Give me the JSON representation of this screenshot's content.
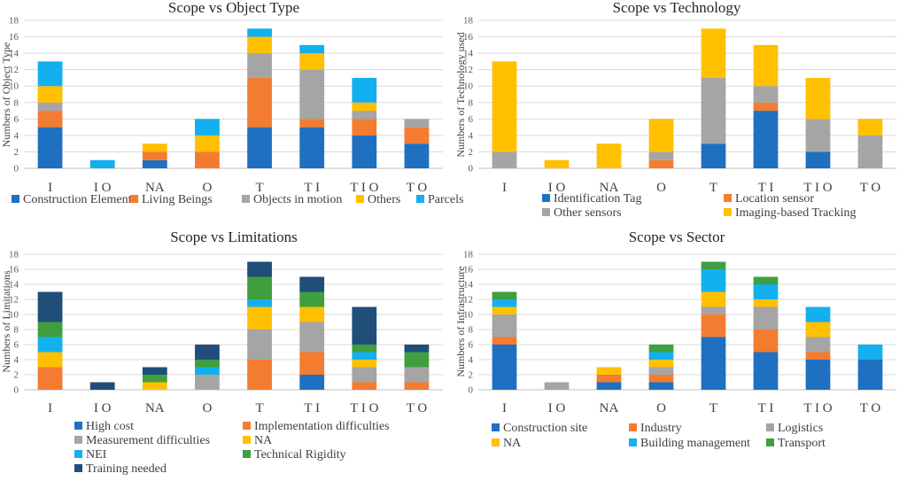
{
  "figure_name": "scope-charts",
  "colors": {
    "blue": "#1f70c1",
    "orange": "#f47c30",
    "gray": "#a5a5a5",
    "yellow": "#ffc000",
    "cyan": "#13b0ef",
    "green": "#3f9f3f",
    "navy": "#1f4e79"
  },
  "chart_data": [
    {
      "type": "bar",
      "stacked": true,
      "title": "Scope vs Object Type",
      "xlabel": "",
      "ylabel": "Numbers of Object Type",
      "ylim": [
        0,
        18
      ],
      "yticks": [
        0,
        2,
        4,
        6,
        8,
        10,
        12,
        14,
        16,
        18
      ],
      "grid": true,
      "legend_position": "bottom",
      "categories": [
        "I",
        "I O",
        "NA",
        "O",
        "T",
        "T I",
        "T I O",
        "T O"
      ],
      "series": [
        {
          "name": "Construction Elements",
          "color": "#1f70c1",
          "values": [
            5,
            0,
            1,
            0,
            5,
            5,
            4,
            3
          ]
        },
        {
          "name": "Living Beings",
          "color": "#f47c30",
          "values": [
            2,
            0,
            1,
            2,
            6,
            1,
            2,
            2
          ]
        },
        {
          "name": "Objects in motion",
          "color": "#a5a5a5",
          "values": [
            1,
            0,
            0,
            0,
            3,
            6,
            1,
            1
          ]
        },
        {
          "name": "Others",
          "color": "#ffc000",
          "values": [
            2,
            0,
            1,
            2,
            2,
            2,
            1,
            0
          ]
        },
        {
          "name": "Parcels",
          "color": "#13b0ef",
          "values": [
            3,
            1,
            0,
            2,
            1,
            1,
            3,
            0
          ]
        }
      ]
    },
    {
      "type": "bar",
      "stacked": true,
      "title": "Scope vs Technology",
      "xlabel": "",
      "ylabel": "Numbers of Technology used",
      "ylim": [
        0,
        18
      ],
      "yticks": [
        0,
        2,
        4,
        6,
        8,
        10,
        12,
        14,
        16,
        18
      ],
      "grid": true,
      "legend_position": "bottom",
      "categories": [
        "I",
        "I O",
        "NA",
        "O",
        "T",
        "T I",
        "T I O",
        "T O"
      ],
      "series": [
        {
          "name": "Identification Tag",
          "color": "#1f70c1",
          "values": [
            0,
            0,
            0,
            0,
            3,
            7,
            2,
            0
          ]
        },
        {
          "name": "Location sensor",
          "color": "#f47c30",
          "values": [
            0,
            0,
            0,
            1,
            0,
            1,
            0,
            0
          ]
        },
        {
          "name": "Other sensors",
          "color": "#a5a5a5",
          "values": [
            2,
            0,
            0,
            1,
            8,
            2,
            4,
            4
          ]
        },
        {
          "name": "Imaging-based Tracking",
          "color": "#ffc000",
          "values": [
            11,
            1,
            3,
            4,
            6,
            5,
            5,
            2
          ]
        }
      ]
    },
    {
      "type": "bar",
      "stacked": true,
      "title": "Scope vs Limitations",
      "xlabel": "",
      "ylabel": "Numbers of Limitations",
      "ylim": [
        0,
        18
      ],
      "yticks": [
        0,
        2,
        4,
        6,
        8,
        10,
        12,
        14,
        16,
        18
      ],
      "grid": true,
      "legend_position": "bottom",
      "categories": [
        "I",
        "I O",
        "NA",
        "O",
        "T",
        "T I",
        "T I O",
        "T O"
      ],
      "series": [
        {
          "name": "High cost",
          "color": "#1f70c1",
          "values": [
            0,
            0,
            0,
            0,
            0,
            2,
            0,
            0
          ]
        },
        {
          "name": "Implementation difficulties",
          "color": "#f47c30",
          "values": [
            3,
            0,
            0,
            0,
            4,
            3,
            1,
            1
          ]
        },
        {
          "name": "Measurement difficulties",
          "color": "#a5a5a5",
          "values": [
            0,
            0,
            0,
            2,
            4,
            4,
            2,
            2
          ]
        },
        {
          "name": "NA",
          "color": "#ffc000",
          "values": [
            2,
            0,
            1,
            0,
            3,
            2,
            1,
            0
          ]
        },
        {
          "name": "NEI",
          "color": "#13b0ef",
          "values": [
            2,
            0,
            0,
            1,
            1,
            0,
            1,
            0
          ]
        },
        {
          "name": "Technical Rigidity",
          "color": "#3f9f3f",
          "values": [
            2,
            0,
            1,
            1,
            3,
            2,
            1,
            2
          ]
        },
        {
          "name": "Training  needed",
          "color": "#1f4e79",
          "values": [
            4,
            1,
            1,
            2,
            2,
            2,
            5,
            1
          ]
        }
      ]
    },
    {
      "type": "bar",
      "stacked": true,
      "title": "Scope vs Sector",
      "xlabel": "",
      "ylabel": "Numbers of  Infrastructure",
      "ylim": [
        0,
        18
      ],
      "yticks": [
        0,
        2,
        4,
        6,
        8,
        10,
        12,
        14,
        16,
        18
      ],
      "grid": true,
      "legend_position": "bottom",
      "categories": [
        "I",
        "I O",
        "NA",
        "O",
        "T",
        "T I",
        "T I O",
        "T O"
      ],
      "series": [
        {
          "name": "Construction site",
          "color": "#1f70c1",
          "values": [
            6,
            0,
            1,
            1,
            7,
            5,
            4,
            4
          ]
        },
        {
          "name": "Industry",
          "color": "#f47c30",
          "values": [
            1,
            0,
            1,
            1,
            3,
            3,
            1,
            0
          ]
        },
        {
          "name": "Logistics",
          "color": "#a5a5a5",
          "values": [
            3,
            1,
            0,
            1,
            1,
            3,
            2,
            0
          ]
        },
        {
          "name": "NA",
          "color": "#ffc000",
          "values": [
            1,
            0,
            1,
            1,
            2,
            1,
            2,
            0
          ]
        },
        {
          "name": "Building management",
          "color": "#13b0ef",
          "values": [
            1,
            0,
            0,
            1,
            3,
            2,
            2,
            2
          ]
        },
        {
          "name": "Transport",
          "color": "#3f9f3f",
          "values": [
            1,
            0,
            0,
            1,
            1,
            1,
            0,
            0
          ]
        }
      ]
    }
  ]
}
